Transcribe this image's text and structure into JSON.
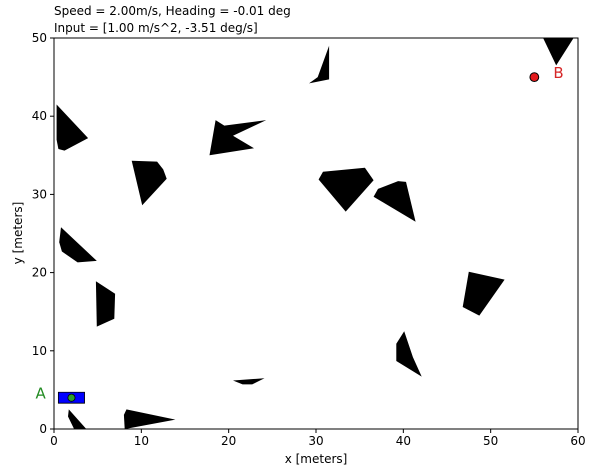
{
  "header": {
    "line1": "Speed = 2.00m/s, Heading = -0.01 deg",
    "line2": "Input = [1.00 m/s^2, -3.51 deg/s]"
  },
  "chart_data": {
    "type": "scatter",
    "xlabel": "x [meters]",
    "ylabel": "y [meters]",
    "xlim": [
      0,
      60
    ],
    "ylim": [
      0,
      50
    ],
    "xticks": [
      0,
      10,
      20,
      30,
      40,
      50,
      60
    ],
    "yticks": [
      0,
      10,
      20,
      30,
      40,
      50
    ],
    "grid": false,
    "start": {
      "label": "A",
      "x": 2.0,
      "y": 4.0,
      "label_color": "#228b22"
    },
    "goal": {
      "label": "B",
      "x": 55.0,
      "y": 45.0,
      "label_color": "#d62728",
      "marker_color": "#e31a1c"
    },
    "vehicle": {
      "x": 2.0,
      "y": 4.0,
      "length": 3.0,
      "width": 1.4,
      "heading_deg": -0.01,
      "body_color": "#0000ff",
      "center_color": "#2ca02c"
    },
    "obstacles": [
      [
        [
          31.5,
          49
        ],
        [
          30.2,
          45
        ],
        [
          29.2,
          44.2
        ],
        [
          31.5,
          44.7
        ]
      ],
      [
        [
          56,
          50
        ],
        [
          59.5,
          50
        ],
        [
          57.5,
          46.5
        ]
      ],
      [
        [
          0.3,
          41.5
        ],
        [
          3.9,
          37.2
        ],
        [
          1.2,
          35.6
        ],
        [
          0.5,
          35.8
        ],
        [
          0.3,
          37
        ]
      ],
      [
        [
          18.5,
          39.5
        ],
        [
          19.5,
          38.8
        ],
        [
          24.3,
          39.5
        ],
        [
          20.5,
          37.5
        ],
        [
          22.9,
          35.9
        ],
        [
          17.8,
          35
        ]
      ],
      [
        [
          8.9,
          34.3
        ],
        [
          11.8,
          34.2
        ],
        [
          12.5,
          33.2
        ],
        [
          12.9,
          32
        ],
        [
          10.1,
          28.6
        ]
      ],
      [
        [
          30.8,
          32.9
        ],
        [
          35.6,
          33.4
        ],
        [
          36.6,
          31.8
        ],
        [
          33.4,
          27.8
        ],
        [
          30.3,
          31.9
        ]
      ],
      [
        [
          37.1,
          30.7
        ],
        [
          39.4,
          31.7
        ],
        [
          40.3,
          31.6
        ],
        [
          41.4,
          26.5
        ],
        [
          36.6,
          29.7
        ]
      ],
      [
        [
          0.8,
          25.8
        ],
        [
          4.9,
          21.5
        ],
        [
          2.7,
          21.3
        ],
        [
          0.9,
          22.7
        ],
        [
          0.6,
          23.9
        ]
      ],
      [
        [
          4.8,
          18.9
        ],
        [
          7.0,
          17.3
        ],
        [
          6.9,
          14.1
        ],
        [
          6.1,
          13.7
        ],
        [
          4.9,
          13.1
        ]
      ],
      [
        [
          47.5,
          20.1
        ],
        [
          51.6,
          19.1
        ],
        [
          48.7,
          14.5
        ],
        [
          46.8,
          15.6
        ]
      ],
      [
        [
          40.1,
          12.5
        ],
        [
          41.1,
          9.2
        ],
        [
          42.1,
          6.7
        ],
        [
          39.2,
          8.7
        ],
        [
          39.2,
          10.9
        ]
      ],
      [
        [
          20.5,
          6.2
        ],
        [
          24.1,
          6.5
        ],
        [
          22.7,
          5.7
        ],
        [
          21.6,
          5.7
        ]
      ],
      [
        [
          1.7,
          2.5
        ],
        [
          3.7,
          0
        ],
        [
          2.3,
          0
        ],
        [
          1.6,
          1.6
        ]
      ],
      [
        [
          8.3,
          2.5
        ],
        [
          13.9,
          1.2
        ],
        [
          8.1,
          0
        ],
        [
          8.0,
          1.8
        ]
      ]
    ]
  }
}
